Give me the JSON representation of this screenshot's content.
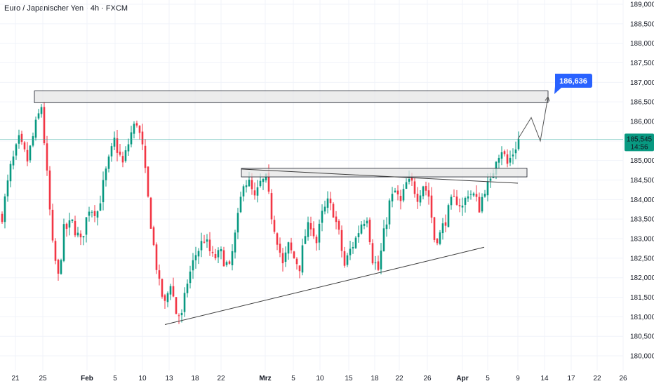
{
  "header": {
    "title": "Euro / Japanischer Yen · 4h · FXCM"
  },
  "chart_data": {
    "type": "candlestick",
    "title": "Euro / Japanischer Yen · 4h · FXCM",
    "y_ticks": [
      180.0,
      180.5,
      181.0,
      181.5,
      182.0,
      182.5,
      183.0,
      183.5,
      184.0,
      184.5,
      185.0,
      185.5,
      186.0,
      186.5,
      187.0,
      187.5,
      188.0,
      188.5,
      189.0
    ],
    "y_tick_labels": [
      "180,000",
      "180,500",
      "181,000",
      "181,500",
      "182,000",
      "182,500",
      "183,000",
      "183,500",
      "184,000",
      "184,500",
      "185,000",
      "185,500",
      "186,000",
      "186,500",
      "187,000",
      "187,500",
      "188,000",
      "188,500",
      "189,000"
    ],
    "ylim": [
      179.7,
      189.05
    ],
    "x_tick_labels": [
      "21",
      "25",
      "Feb",
      "5",
      "10",
      "13",
      "18",
      "22",
      "Mrz",
      "5",
      "10",
      "15",
      "18",
      "22",
      "26",
      "Apr",
      "5",
      "9",
      "14",
      "17",
      "22",
      "26"
    ],
    "x_tick_bold": [
      "Feb",
      "Mrz",
      "Apr"
    ],
    "price_path": [
      {
        "t": 0,
        "p": 183.6
      },
      {
        "t": 3,
        "p": 184.8
      },
      {
        "t": 6,
        "p": 185.5
      },
      {
        "t": 9,
        "p": 185.0
      },
      {
        "t": 12,
        "p": 185.9
      },
      {
        "t": 14,
        "p": 186.4
      },
      {
        "t": 16,
        "p": 184.6
      },
      {
        "t": 18,
        "p": 182.8
      },
      {
        "t": 20,
        "p": 182.0
      },
      {
        "t": 22,
        "p": 183.2
      },
      {
        "t": 25,
        "p": 183.4
      },
      {
        "t": 28,
        "p": 182.9
      },
      {
        "t": 31,
        "p": 183.8
      },
      {
        "t": 34,
        "p": 183.7
      },
      {
        "t": 37,
        "p": 184.7
      },
      {
        "t": 40,
        "p": 185.5
      },
      {
        "t": 43,
        "p": 184.9
      },
      {
        "t": 46,
        "p": 185.7
      },
      {
        "t": 48,
        "p": 186.0
      },
      {
        "t": 50,
        "p": 185.3
      },
      {
        "t": 52,
        "p": 184.0
      },
      {
        "t": 54,
        "p": 182.8
      },
      {
        "t": 56,
        "p": 181.8
      },
      {
        "t": 58,
        "p": 181.3
      },
      {
        "t": 60,
        "p": 181.9
      },
      {
        "t": 62,
        "p": 181.1
      },
      {
        "t": 64,
        "p": 181.0
      },
      {
        "t": 66,
        "p": 181.9
      },
      {
        "t": 69,
        "p": 182.6
      },
      {
        "t": 72,
        "p": 183.0
      },
      {
        "t": 75,
        "p": 182.5
      },
      {
        "t": 78,
        "p": 182.6
      },
      {
        "t": 81,
        "p": 182.2
      },
      {
        "t": 84,
        "p": 183.5
      },
      {
        "t": 86,
        "p": 184.5
      },
      {
        "t": 88,
        "p": 184.4
      },
      {
        "t": 90,
        "p": 184.0
      },
      {
        "t": 92,
        "p": 184.4
      },
      {
        "t": 94,
        "p": 184.5
      },
      {
        "t": 96,
        "p": 183.6
      },
      {
        "t": 98,
        "p": 183.0
      },
      {
        "t": 100,
        "p": 182.3
      },
      {
        "t": 102,
        "p": 182.8
      },
      {
        "t": 104,
        "p": 182.5
      },
      {
        "t": 106,
        "p": 182.3
      },
      {
        "t": 108,
        "p": 183.1
      },
      {
        "t": 110,
        "p": 183.4
      },
      {
        "t": 112,
        "p": 182.9
      },
      {
        "t": 114,
        "p": 183.6
      },
      {
        "t": 116,
        "p": 183.9
      },
      {
        "t": 118,
        "p": 183.7
      },
      {
        "t": 120,
        "p": 183.1
      },
      {
        "t": 122,
        "p": 182.3
      },
      {
        "t": 124,
        "p": 182.7
      },
      {
        "t": 126,
        "p": 183.0
      },
      {
        "t": 128,
        "p": 183.4
      },
      {
        "t": 130,
        "p": 183.6
      },
      {
        "t": 132,
        "p": 182.5
      },
      {
        "t": 134,
        "p": 182.2
      },
      {
        "t": 136,
        "p": 183.1
      },
      {
        "t": 138,
        "p": 183.9
      },
      {
        "t": 140,
        "p": 184.2
      },
      {
        "t": 142,
        "p": 183.9
      },
      {
        "t": 144,
        "p": 184.4
      },
      {
        "t": 146,
        "p": 184.4
      },
      {
        "t": 148,
        "p": 184.1
      },
      {
        "t": 150,
        "p": 184.4
      },
      {
        "t": 152,
        "p": 184.1
      },
      {
        "t": 154,
        "p": 183.0
      },
      {
        "t": 156,
        "p": 183.1
      },
      {
        "t": 158,
        "p": 183.5
      },
      {
        "t": 160,
        "p": 183.9
      },
      {
        "t": 162,
        "p": 184.0
      },
      {
        "t": 164,
        "p": 183.8
      },
      {
        "t": 166,
        "p": 184.2
      },
      {
        "t": 168,
        "p": 184.1
      },
      {
        "t": 170,
        "p": 183.8
      },
      {
        "t": 172,
        "p": 184.3
      },
      {
        "t": 174,
        "p": 184.4
      },
      {
        "t": 176,
        "p": 185.1
      },
      {
        "t": 178,
        "p": 185.3
      },
      {
        "t": 180,
        "p": 184.9
      },
      {
        "t": 182,
        "p": 185.2
      },
      {
        "t": 184,
        "p": 185.545
      }
    ],
    "zones": [
      {
        "name": "upper-resistance-zone",
        "from_date": "Jan 24",
        "to_date": "Apr 14",
        "y_top": 186.78,
        "y_bottom": 186.48
      },
      {
        "name": "breakout-zone",
        "from_date": "Feb 29",
        "to_date": "Apr 10",
        "y_top": 184.8,
        "y_bottom": 184.58
      }
    ],
    "trendlines": [
      {
        "name": "ascending-support-line",
        "from": {
          "date": "Feb 12",
          "y": 180.8
        },
        "to": {
          "date": "Apr 4",
          "y": 182.78
        }
      },
      {
        "name": "descending-resistance-line",
        "from": {
          "date": "Feb 29",
          "y": 184.78
        },
        "to": {
          "date": "Apr 9",
          "y": 184.42
        }
      }
    ],
    "projection": [
      {
        "date": "Apr 9",
        "y": 185.545
      },
      {
        "date": "Apr 11",
        "y": 186.1
      },
      {
        "date": "Apr 12",
        "y": 185.5
      },
      {
        "date": "Apr 14",
        "y": 186.636
      }
    ],
    "current_price": 185.545,
    "current_price_label": "185,545",
    "countdown": "14:56",
    "target_price_label": "186,636",
    "colors": {
      "up": "#089981",
      "down": "#f23645",
      "price_line": "#26a69a",
      "target_tag": "#2962ff",
      "zone_fill": "#e6e6e6",
      "zone_stroke": "#131722",
      "trendline": "#3b3b3b"
    }
  }
}
